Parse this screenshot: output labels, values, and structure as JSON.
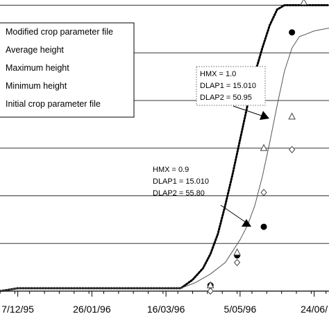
{
  "chart_data": {
    "type": "line",
    "title": "",
    "xlabel": "",
    "ylabel": "",
    "x_tick_labels": [
      "7/12/95",
      "26/01/96",
      "16/03/96",
      "5/05/96",
      "24/06/"
    ],
    "x_tick_days": [
      0,
      50,
      100,
      150,
      200
    ],
    "xlim": [
      -12,
      210
    ],
    "ylim": [
      0,
      1.04
    ],
    "grid": "horizontal",
    "gridlines": [
      0.0,
      0.1667,
      0.3333,
      0.5,
      0.6667,
      0.8333,
      1.0
    ],
    "legend": {
      "placement": "top-left",
      "entries": [
        {
          "label": "Modified crop parameter file",
          "style": "dotted"
        },
        {
          "label": "Average height",
          "style": "filled-circle"
        },
        {
          "label": "Maximum height",
          "style": "open-triangle"
        },
        {
          "label": "Minimum height",
          "style": "open-diamond"
        },
        {
          "label": "Initial crop parameter file",
          "style": "solid"
        }
      ]
    },
    "series": [
      {
        "name": "Modified crop parameter file",
        "style": "dotted",
        "x": [
          -12,
          0,
          40,
          110,
          118,
          125,
          130,
          135,
          140,
          145,
          150,
          155,
          160,
          165,
          170,
          175,
          180,
          185,
          190,
          200,
          210
        ],
        "y": [
          0.0,
          0.01,
          0.01,
          0.01,
          0.04,
          0.08,
          0.13,
          0.2,
          0.3,
          0.41,
          0.53,
          0.65,
          0.76,
          0.85,
          0.93,
          0.985,
          1.0,
          1.0,
          1.0,
          1.0,
          1.0
        ]
      },
      {
        "name": "Initial crop parameter file",
        "style": "solid",
        "x": [
          -12,
          0,
          40,
          110,
          120,
          130,
          140,
          145,
          150,
          155,
          160,
          165,
          170,
          175,
          180,
          185,
          190,
          195,
          200,
          210
        ],
        "y": [
          0.0,
          0.01,
          0.01,
          0.01,
          0.03,
          0.06,
          0.1,
          0.14,
          0.18,
          0.23,
          0.3,
          0.4,
          0.52,
          0.65,
          0.77,
          0.85,
          0.89,
          0.9,
          0.91,
          0.92
        ]
      },
      {
        "name": "Average height",
        "style": "filled-circle",
        "x": [
          130,
          148,
          166,
          185
        ],
        "y": [
          0.02,
          0.125,
          0.225,
          0.905
        ]
      },
      {
        "name": "Maximum height",
        "style": "open-triangle",
        "x": [
          130,
          148,
          166,
          185,
          193
        ],
        "y": [
          0.02,
          0.135,
          0.5,
          0.61,
          1.01
        ]
      },
      {
        "name": "Minimum height",
        "style": "open-diamond",
        "x": [
          130,
          148,
          166,
          185
        ],
        "y": [
          0.0,
          0.1,
          0.345,
          0.495
        ]
      }
    ],
    "annotations": [
      {
        "lines": [
          "HMX = 1.0",
          "DLAP1 = 15.010",
          "DLAP2 = 50.95"
        ],
        "boxed": true,
        "dotted_box": true
      },
      {
        "lines": [
          "HMX = 0.9",
          "DLAP1 = 15.010",
          "DLAP2 = 55.80"
        ],
        "boxed": false
      }
    ]
  }
}
